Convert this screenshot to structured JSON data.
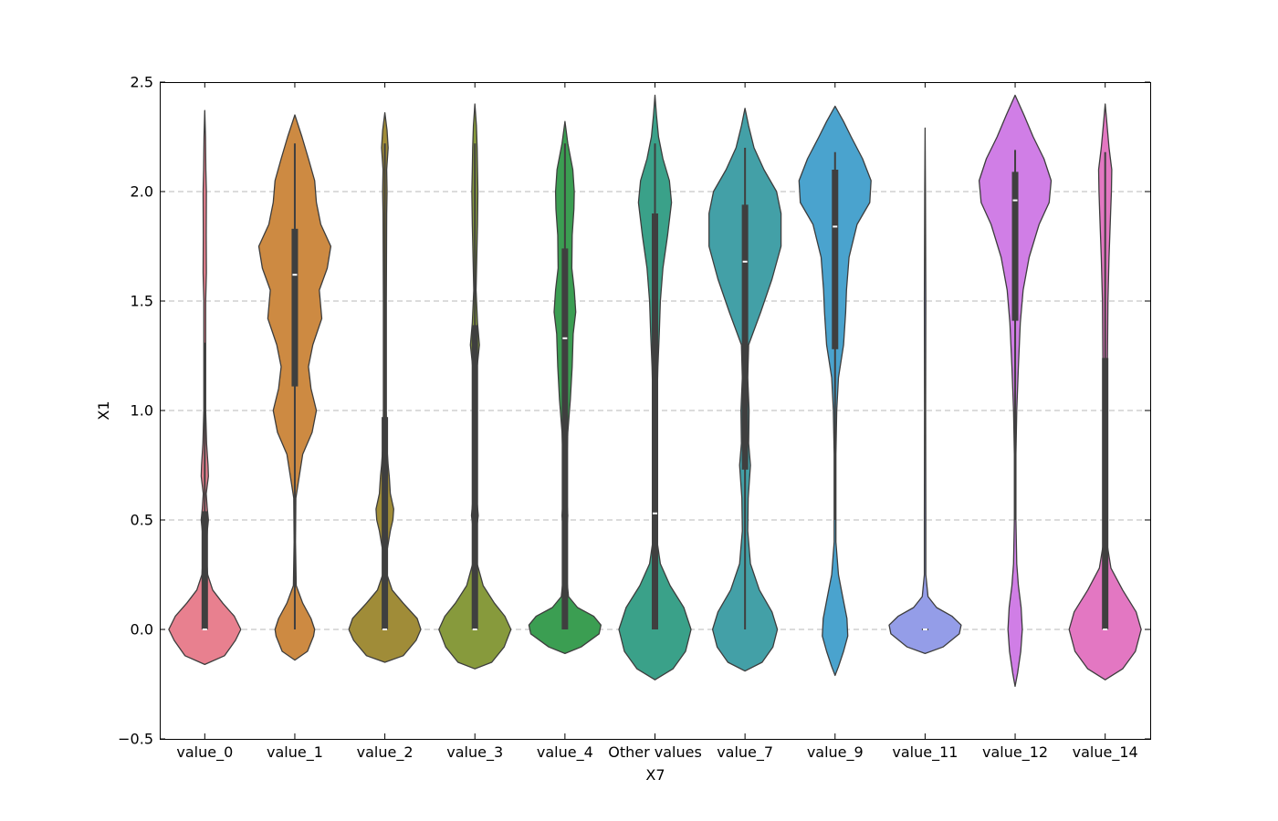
{
  "chart_data": {
    "type": "violin",
    "xlabel": "X7",
    "ylabel": "X1",
    "ylim": [
      -0.5,
      2.5
    ],
    "yticks": [
      -0.5,
      0.0,
      0.5,
      1.0,
      1.5,
      2.0,
      2.5
    ],
    "ytick_labels": [
      "−0.5",
      "0.0",
      "0.5",
      "1.0",
      "1.5",
      "2.0",
      "2.5"
    ],
    "grid": "y-dashed",
    "series": [
      {
        "category": "value_0",
        "color": "#e8808f",
        "box": {
          "q1": 0.0,
          "median": 0.0,
          "q3": 0.54,
          "whisker_low": 0.0,
          "whisker_high": 1.31
        },
        "density": [
          [
            -0.16,
            0.0
          ],
          [
            -0.12,
            0.55
          ],
          [
            -0.05,
            0.85
          ],
          [
            0.0,
            1.0
          ],
          [
            0.06,
            0.82
          ],
          [
            0.12,
            0.5
          ],
          [
            0.18,
            0.22
          ],
          [
            0.25,
            0.08
          ],
          [
            0.35,
            0.04
          ],
          [
            0.45,
            0.07
          ],
          [
            0.5,
            0.1
          ],
          [
            0.55,
            0.07
          ],
          [
            0.62,
            0.04
          ],
          [
            0.7,
            0.1
          ],
          [
            0.75,
            0.09
          ],
          [
            0.85,
            0.05
          ],
          [
            1.0,
            0.025
          ],
          [
            1.5,
            0.025
          ],
          [
            1.63,
            0.045
          ],
          [
            1.8,
            0.04
          ],
          [
            2.0,
            0.045
          ],
          [
            2.1,
            0.03
          ],
          [
            2.25,
            0.02
          ],
          [
            2.37,
            0.0
          ]
        ]
      },
      {
        "category": "value_1",
        "color": "#cd8a42",
        "box": {
          "q1": 1.11,
          "median": 1.62,
          "q3": 1.83,
          "whisker_low": 0.0,
          "whisker_high": 2.22
        },
        "density": [
          [
            -0.14,
            0.0
          ],
          [
            -0.1,
            0.35
          ],
          [
            -0.03,
            0.52
          ],
          [
            0.0,
            0.55
          ],
          [
            0.05,
            0.45
          ],
          [
            0.12,
            0.22
          ],
          [
            0.2,
            0.04
          ],
          [
            0.4,
            0.02
          ],
          [
            0.6,
            0.03
          ],
          [
            0.8,
            0.22
          ],
          [
            0.9,
            0.48
          ],
          [
            1.0,
            0.6
          ],
          [
            1.1,
            0.45
          ],
          [
            1.2,
            0.38
          ],
          [
            1.3,
            0.5
          ],
          [
            1.42,
            0.75
          ],
          [
            1.55,
            0.68
          ],
          [
            1.65,
            0.9
          ],
          [
            1.75,
            1.0
          ],
          [
            1.85,
            0.72
          ],
          [
            1.95,
            0.6
          ],
          [
            2.05,
            0.55
          ],
          [
            2.15,
            0.38
          ],
          [
            2.25,
            0.2
          ],
          [
            2.35,
            0.0
          ]
        ]
      },
      {
        "category": "value_2",
        "color": "#a08c38",
        "box": {
          "q1": 0.0,
          "median": 0.0,
          "q3": 0.97,
          "whisker_low": 0.0,
          "whisker_high": 2.22
        },
        "density": [
          [
            -0.15,
            0.0
          ],
          [
            -0.12,
            0.5
          ],
          [
            -0.05,
            0.85
          ],
          [
            0.0,
            0.98
          ],
          [
            0.05,
            0.88
          ],
          [
            0.12,
            0.5
          ],
          [
            0.18,
            0.2
          ],
          [
            0.25,
            0.06
          ],
          [
            0.35,
            0.05
          ],
          [
            0.45,
            0.15
          ],
          [
            0.5,
            0.22
          ],
          [
            0.55,
            0.24
          ],
          [
            0.62,
            0.15
          ],
          [
            0.7,
            0.12
          ],
          [
            0.75,
            0.09
          ],
          [
            0.85,
            0.05
          ],
          [
            1.0,
            0.04
          ],
          [
            1.5,
            0.04
          ],
          [
            1.9,
            0.05
          ],
          [
            2.0,
            0.06
          ],
          [
            2.1,
            0.05
          ],
          [
            2.2,
            0.09
          ],
          [
            2.28,
            0.06
          ],
          [
            2.36,
            0.0
          ]
        ]
      },
      {
        "category": "value_3",
        "color": "#879a3c",
        "box": {
          "q1": 0.0,
          "median": 0.0,
          "q3": 1.39,
          "whisker_low": 0.0,
          "whisker_high": 2.22
        },
        "density": [
          [
            -0.18,
            0.0
          ],
          [
            -0.15,
            0.45
          ],
          [
            -0.08,
            0.78
          ],
          [
            0.0,
            0.96
          ],
          [
            0.06,
            0.8
          ],
          [
            0.12,
            0.52
          ],
          [
            0.2,
            0.22
          ],
          [
            0.3,
            0.06
          ],
          [
            0.45,
            0.04
          ],
          [
            0.52,
            0.09
          ],
          [
            0.6,
            0.05
          ],
          [
            0.8,
            0.02
          ],
          [
            1.0,
            0.02
          ],
          [
            1.2,
            0.06
          ],
          [
            1.3,
            0.12
          ],
          [
            1.4,
            0.07
          ],
          [
            1.55,
            0.03
          ],
          [
            1.7,
            0.05
          ],
          [
            1.85,
            0.07
          ],
          [
            2.0,
            0.08
          ],
          [
            2.1,
            0.07
          ],
          [
            2.2,
            0.06
          ],
          [
            2.3,
            0.04
          ],
          [
            2.4,
            0.0
          ]
        ]
      },
      {
        "category": "value_4",
        "color": "#3b9e52",
        "box": {
          "q1": 0.0,
          "median": 1.33,
          "q3": 1.74,
          "whisker_low": 0.0,
          "whisker_high": 2.22
        },
        "density": [
          [
            -0.11,
            0.0
          ],
          [
            -0.08,
            0.45
          ],
          [
            -0.02,
            0.95
          ],
          [
            0.02,
            1.0
          ],
          [
            0.06,
            0.8
          ],
          [
            0.1,
            0.35
          ],
          [
            0.15,
            0.1
          ],
          [
            0.25,
            0.04
          ],
          [
            0.45,
            0.05
          ],
          [
            0.52,
            0.08
          ],
          [
            0.6,
            0.05
          ],
          [
            0.75,
            0.05
          ],
          [
            0.9,
            0.08
          ],
          [
            1.05,
            0.15
          ],
          [
            1.2,
            0.2
          ],
          [
            1.35,
            0.23
          ],
          [
            1.45,
            0.3
          ],
          [
            1.55,
            0.26
          ],
          [
            1.65,
            0.19
          ],
          [
            1.8,
            0.2
          ],
          [
            1.92,
            0.25
          ],
          [
            2.0,
            0.26
          ],
          [
            2.1,
            0.22
          ],
          [
            2.22,
            0.08
          ],
          [
            2.32,
            0.0
          ]
        ]
      },
      {
        "category": "Other values",
        "color": "#3aa189",
        "box": {
          "q1": 0.0,
          "median": 0.53,
          "q3": 1.9,
          "whisker_low": 0.0,
          "whisker_high": 2.22
        },
        "density": [
          [
            -0.23,
            0.0
          ],
          [
            -0.18,
            0.5
          ],
          [
            -0.1,
            0.85
          ],
          [
            0.0,
            1.0
          ],
          [
            0.1,
            0.8
          ],
          [
            0.2,
            0.42
          ],
          [
            0.3,
            0.15
          ],
          [
            0.4,
            0.06
          ],
          [
            0.6,
            0.05
          ],
          [
            0.8,
            0.05
          ],
          [
            1.0,
            0.05
          ],
          [
            1.2,
            0.08
          ],
          [
            1.35,
            0.12
          ],
          [
            1.5,
            0.15
          ],
          [
            1.65,
            0.22
          ],
          [
            1.8,
            0.35
          ],
          [
            1.95,
            0.46
          ],
          [
            2.05,
            0.4
          ],
          [
            2.15,
            0.22
          ],
          [
            2.25,
            0.1
          ],
          [
            2.35,
            0.04
          ],
          [
            2.44,
            0.0
          ]
        ]
      },
      {
        "category": "value_7",
        "color": "#43a0a7",
        "box": {
          "q1": 0.73,
          "median": 1.68,
          "q3": 1.94,
          "whisker_low": 0.0,
          "whisker_high": 2.2
        },
        "density": [
          [
            -0.19,
            0.0
          ],
          [
            -0.15,
            0.38
          ],
          [
            -0.08,
            0.62
          ],
          [
            0.0,
            0.72
          ],
          [
            0.08,
            0.6
          ],
          [
            0.18,
            0.32
          ],
          [
            0.3,
            0.12
          ],
          [
            0.45,
            0.06
          ],
          [
            0.6,
            0.07
          ],
          [
            0.75,
            0.12
          ],
          [
            0.85,
            0.08
          ],
          [
            1.0,
            0.09
          ],
          [
            1.15,
            0.06
          ],
          [
            1.3,
            0.08
          ],
          [
            1.45,
            0.35
          ],
          [
            1.6,
            0.6
          ],
          [
            1.75,
            0.8
          ],
          [
            1.9,
            0.8
          ],
          [
            2.0,
            0.7
          ],
          [
            2.1,
            0.42
          ],
          [
            2.2,
            0.2
          ],
          [
            2.3,
            0.08
          ],
          [
            2.38,
            0.0
          ]
        ]
      },
      {
        "category": "value_9",
        "color": "#4aa3ce",
        "box": {
          "q1": 1.28,
          "median": 1.84,
          "q3": 2.1,
          "whisker_low": 0.5,
          "whisker_high": 2.18
        },
        "density": [
          [
            -0.21,
            0.0
          ],
          [
            -0.17,
            0.08
          ],
          [
            -0.1,
            0.2
          ],
          [
            -0.03,
            0.3
          ],
          [
            0.05,
            0.28
          ],
          [
            0.15,
            0.18
          ],
          [
            0.25,
            0.08
          ],
          [
            0.4,
            0.02
          ],
          [
            0.6,
            0.02
          ],
          [
            0.8,
            0.02
          ],
          [
            1.0,
            0.04
          ],
          [
            1.15,
            0.08
          ],
          [
            1.3,
            0.2
          ],
          [
            1.45,
            0.25
          ],
          [
            1.55,
            0.27
          ],
          [
            1.7,
            0.33
          ],
          [
            1.85,
            0.52
          ],
          [
            1.95,
            0.82
          ],
          [
            2.05,
            0.85
          ],
          [
            2.15,
            0.65
          ],
          [
            2.25,
            0.38
          ],
          [
            2.32,
            0.2
          ],
          [
            2.39,
            0.0
          ]
        ]
      },
      {
        "category": "value_11",
        "color": "#949de8",
        "box": {
          "q1": 0.0,
          "median": 0.0,
          "q3": 0.0,
          "whisker_low": 0.0,
          "whisker_high": 0.0
        },
        "density": [
          [
            -0.11,
            0.0
          ],
          [
            -0.08,
            0.5
          ],
          [
            -0.02,
            0.95
          ],
          [
            0.02,
            1.0
          ],
          [
            0.06,
            0.75
          ],
          [
            0.1,
            0.32
          ],
          [
            0.15,
            0.08
          ],
          [
            0.25,
            0.02
          ],
          [
            0.5,
            0.02
          ],
          [
            1.0,
            0.015
          ],
          [
            1.5,
            0.02
          ],
          [
            2.0,
            0.01
          ],
          [
            2.29,
            0.0
          ]
        ]
      },
      {
        "category": "value_12",
        "color": "#d07ee6",
        "box": {
          "q1": 1.41,
          "median": 1.96,
          "q3": 2.09,
          "whisker_low": 0.5,
          "whisker_high": 2.19
        },
        "density": [
          [
            -0.26,
            0.0
          ],
          [
            -0.2,
            0.06
          ],
          [
            -0.1,
            0.14
          ],
          [
            0.0,
            0.18
          ],
          [
            0.1,
            0.15
          ],
          [
            0.2,
            0.08
          ],
          [
            0.3,
            0.04
          ],
          [
            0.5,
            0.02
          ],
          [
            0.8,
            0.02
          ],
          [
            1.0,
            0.04
          ],
          [
            1.2,
            0.08
          ],
          [
            1.4,
            0.13
          ],
          [
            1.55,
            0.2
          ],
          [
            1.7,
            0.35
          ],
          [
            1.85,
            0.6
          ],
          [
            1.95,
            0.85
          ],
          [
            2.05,
            0.9
          ],
          [
            2.15,
            0.72
          ],
          [
            2.25,
            0.45
          ],
          [
            2.35,
            0.22
          ],
          [
            2.44,
            0.0
          ]
        ]
      },
      {
        "category": "value_14",
        "color": "#e377c2",
        "box": {
          "q1": 0.0,
          "median": 0.0,
          "q3": 1.24,
          "whisker_low": 0.0,
          "whisker_high": 2.18
        },
        "density": [
          [
            -0.23,
            0.0
          ],
          [
            -0.18,
            0.45
          ],
          [
            -0.1,
            0.78
          ],
          [
            0.0,
            0.93
          ],
          [
            0.08,
            0.8
          ],
          [
            0.18,
            0.45
          ],
          [
            0.28,
            0.15
          ],
          [
            0.4,
            0.04
          ],
          [
            0.7,
            0.03
          ],
          [
            1.0,
            0.04
          ],
          [
            1.25,
            0.06
          ],
          [
            1.5,
            0.07
          ],
          [
            1.7,
            0.1
          ],
          [
            1.9,
            0.14
          ],
          [
            2.0,
            0.16
          ],
          [
            2.1,
            0.17
          ],
          [
            2.2,
            0.1
          ],
          [
            2.3,
            0.05
          ],
          [
            2.4,
            0.0
          ]
        ]
      }
    ]
  }
}
